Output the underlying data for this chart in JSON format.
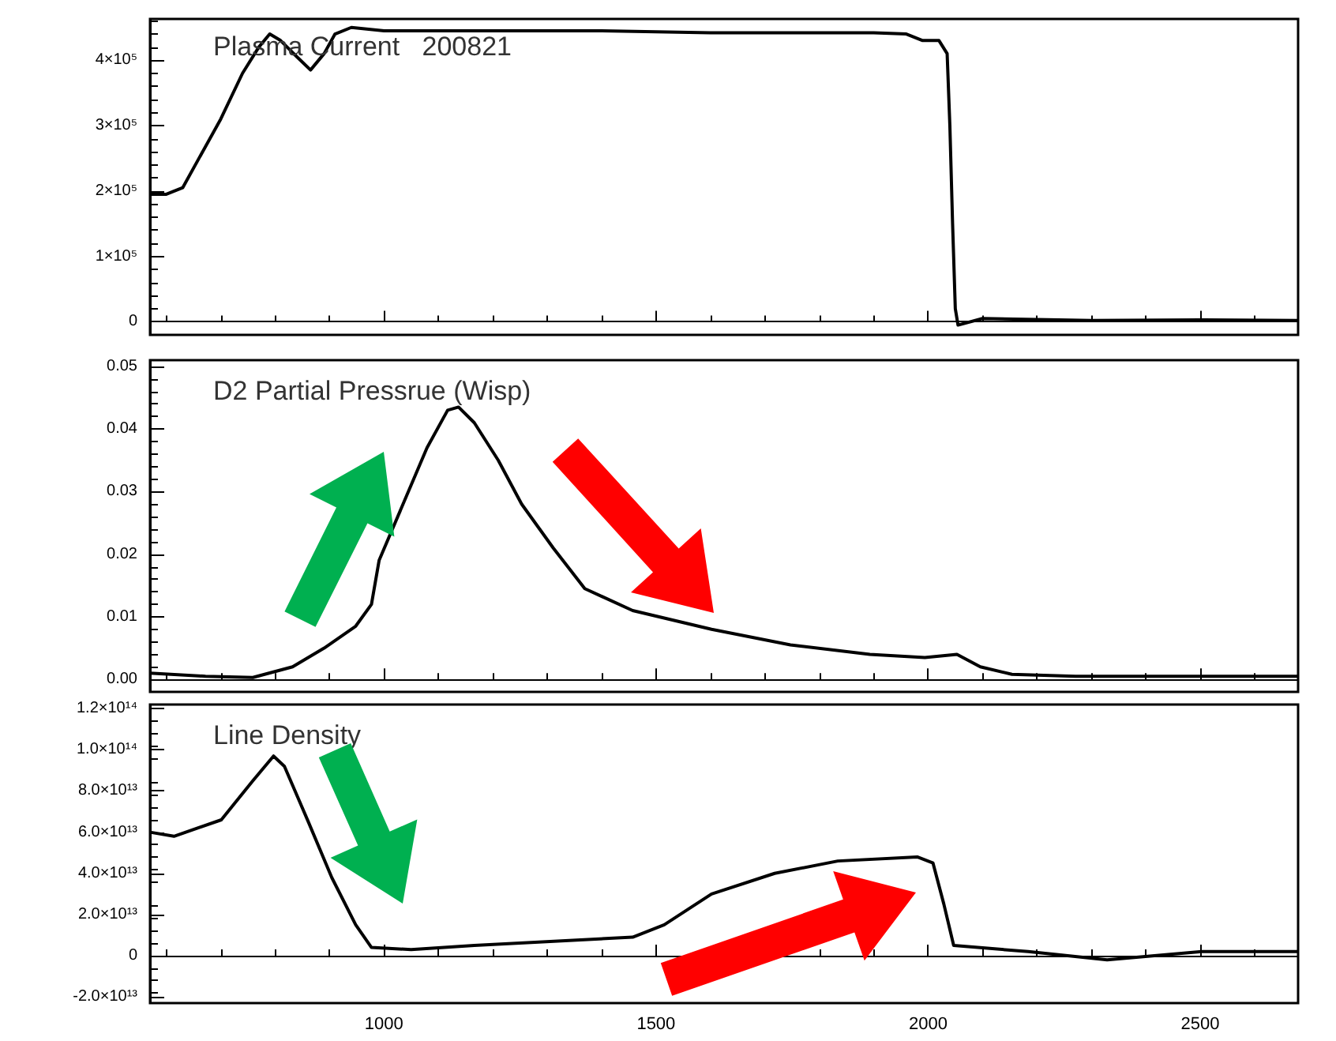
{
  "chart_data": [
    {
      "type": "line",
      "title": "Plasma Current   200821",
      "tick_labels": "y",
      "marker": "none",
      "line_style": "solid",
      "xlim": [
        570,
        2680
      ],
      "xticks": [
        1000,
        1500,
        2000,
        2500
      ],
      "ylim": [
        -20000,
        463000
      ],
      "yticks": [
        {
          "value": 0,
          "label": "0"
        },
        {
          "value": 100000,
          "label": "1×10⁵"
        },
        {
          "value": 200000,
          "label": "2×10⁵"
        },
        {
          "value": 300000,
          "label": "3×10⁵"
        },
        {
          "value": 400000,
          "label": "4×10⁵"
        }
      ],
      "series": [
        {
          "color": "#000000",
          "x": [
            570,
            600,
            630,
            660,
            700,
            740,
            770,
            790,
            810,
            840,
            865,
            890,
            910,
            940,
            1000,
            1100,
            1200,
            1400,
            1600,
            1800,
            1900,
            1960,
            1990,
            2020,
            2035,
            2040,
            2045,
            2050,
            2055,
            2100,
            2300,
            2500,
            2680
          ],
          "values": [
            195000,
            195000,
            205000,
            250000,
            310000,
            380000,
            420000,
            440000,
            430000,
            405000,
            385000,
            410000,
            440000,
            450000,
            445000,
            445000,
            445000,
            445000,
            442000,
            442000,
            442000,
            440000,
            430000,
            430000,
            410000,
            300000,
            150000,
            20000,
            -5000,
            5000,
            2000,
            3000,
            2000
          ]
        }
      ]
    },
    {
      "type": "line",
      "title": "D2 Partial Pressrue (Wisp)",
      "tick_labels": "y",
      "marker": "none",
      "line_style": "solid",
      "xlim": [
        570,
        2680
      ],
      "xticks": [
        1000,
        1500,
        2000,
        2500
      ],
      "ylim": [
        -0.002,
        0.051
      ],
      "yticks": [
        {
          "value": 0,
          "label": "0.00"
        },
        {
          "value": 0.01,
          "label": "0.01"
        },
        {
          "value": 0.02,
          "label": "0.02"
        },
        {
          "value": 0.03,
          "label": "0.03"
        },
        {
          "value": 0.04,
          "label": "0.04"
        },
        {
          "value": 0.05,
          "label": "0.05"
        }
      ],
      "series": [
        {
          "color": "#000000",
          "x": [
            570,
            672,
            759,
            832,
            890,
            948,
            977,
            991,
            1035,
            1079,
            1117,
            1137,
            1166,
            1210,
            1253,
            1311,
            1369,
            1457,
            1602,
            1747,
            1893,
            1994,
            2053,
            2096,
            2154,
            2271,
            2680
          ],
          "values": [
            0.001,
            0.0005,
            0.0003,
            0.002,
            0.005,
            0.0085,
            0.012,
            0.019,
            0.028,
            0.037,
            0.043,
            0.0435,
            0.041,
            0.035,
            0.028,
            0.021,
            0.0145,
            0.011,
            0.008,
            0.0055,
            0.004,
            0.0035,
            0.004,
            0.002,
            0.0008,
            0.0005,
            0.0005
          ]
        }
      ]
    },
    {
      "type": "line",
      "title": "Line Density",
      "marker": "none",
      "line_style": "solid",
      "xlim": [
        570,
        2680
      ],
      "xticks": [
        1000,
        1500,
        2000,
        2500
      ],
      "ylim": [
        -23000000000000.0,
        122000000000000.0
      ],
      "yticks": [
        {
          "value": -20000000000000.0,
          "label": "-2.0×10¹³"
        },
        {
          "value": 0,
          "label": "0"
        },
        {
          "value": 20000000000000.0,
          "label": "2.0×10¹³"
        },
        {
          "value": 40000000000000.0,
          "label": "4.0×10¹³"
        },
        {
          "value": 60000000000000.0,
          "label": "6.0×10¹³"
        },
        {
          "value": 80000000000000.0,
          "label": "8.0×10¹³"
        },
        {
          "value": 100000000000000.0,
          "label": "1.0×10¹⁴"
        },
        {
          "value": 120000000000000.0,
          "label": "1.2×10¹⁴"
        }
      ],
      "series": [
        {
          "color": "#000000",
          "x": [
            570,
            614,
            701,
            759,
            797,
            817,
            861,
            904,
            948,
            977,
            1050,
            1166,
            1457,
            1515,
            1602,
            1718,
            1834,
            1980,
            2009,
            2029,
            2047,
            2184,
            2329,
            2503,
            2680
          ],
          "values": [
            60000000000000.0,
            58000000000000.0,
            66000000000000.0,
            85000000000000.0,
            97000000000000.0,
            92000000000000.0,
            65000000000000.0,
            38000000000000.0,
            15000000000000.0,
            4000000000000.0,
            3000000000000.0,
            5000000000000.0,
            9000000000000.0,
            15000000000000.0,
            30000000000000.0,
            40000000000000.0,
            46000000000000.0,
            48000000000000.0,
            45000000000000.0,
            25000000000000.0,
            5000000000000.0,
            2000000000000.0,
            -2000000000000.0,
            2000000000000.0,
            2000000000000.0
          ]
        }
      ]
    }
  ]
}
